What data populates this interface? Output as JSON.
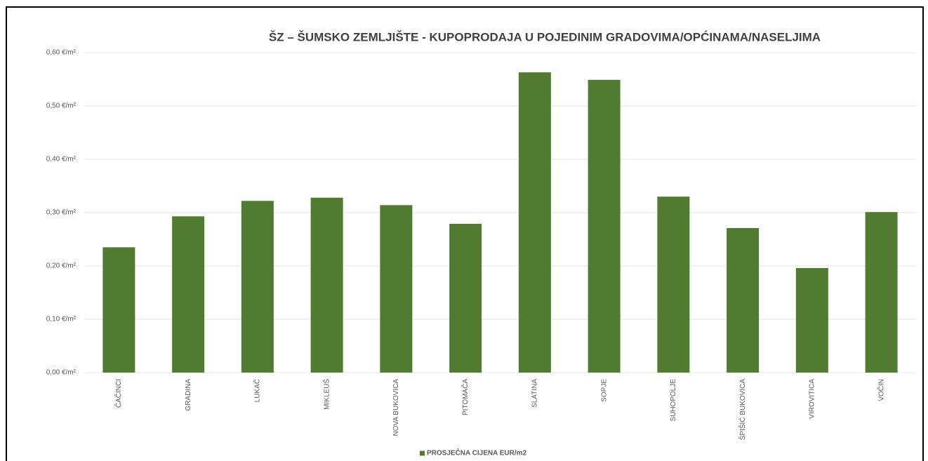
{
  "chart_data": {
    "type": "bar",
    "title": "ŠZ – ŠUMSKO ZEMLJIŠTE - KUPOPRODAJA  U POJEDINIM GRADOVIMA/OPĆINAMA/NASELJIMA",
    "categories": [
      "ČAČINCI",
      "GRADINA",
      "LUKAČ",
      "MIKLEUŠ",
      "NOVA BUKOVICA",
      "PITOMAČA",
      "SLATINA",
      "SOPJE",
      "SUHOPOLJE",
      "ŠPIŠIĆ BUKOVICA",
      "VIROVITICA",
      "VOČIN"
    ],
    "series": [
      {
        "name": "PROSJEČNA CIJENA EUR/m2",
        "color": "#507b31",
        "values": [
          0.235,
          0.293,
          0.322,
          0.328,
          0.314,
          0.279,
          0.563,
          0.549,
          0.33,
          0.271,
          0.196,
          0.301
        ]
      }
    ],
    "ylim": [
      0,
      0.6
    ],
    "yticks": [
      {
        "value": 0,
        "label": "0,00 €/m²"
      },
      {
        "value": 0.1,
        "label": "0,10 €/m²"
      },
      {
        "value": 0.2,
        "label": "0,20 €/m²"
      },
      {
        "value": 0.3,
        "label": "0,30 €/m²"
      },
      {
        "value": 0.4,
        "label": "0,40 €/m²"
      },
      {
        "value": 0.5,
        "label": "0,50 €/m²"
      },
      {
        "value": 0.6,
        "label": "0,60 €/m²"
      }
    ],
    "grid": true,
    "legend": "bottom"
  }
}
